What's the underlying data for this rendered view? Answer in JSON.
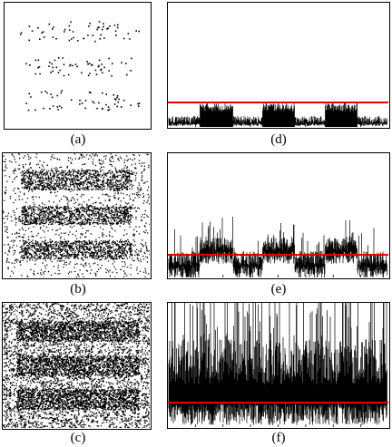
{
  "figure": {
    "captions": {
      "a": "(a)",
      "b": "(b)",
      "c": "(c)",
      "d": "(d)",
      "e": "(e)",
      "f": "(f)"
    },
    "colors": {
      "signal": "#000000",
      "threshold": "#e00000",
      "background": "#ffffff"
    }
  }
}
